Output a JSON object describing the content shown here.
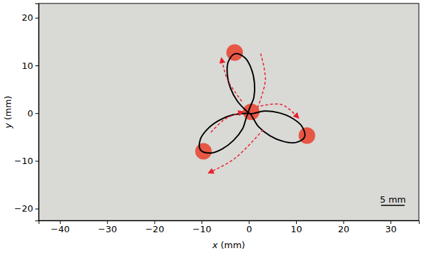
{
  "chart_data": {
    "type": "line",
    "xlabel": "x (mm)",
    "ylabel": "y (mm)",
    "xlim": [
      -44.5,
      36
    ],
    "ylim": [
      -22.5,
      23
    ],
    "xticks": [
      {
        "value": -40,
        "label": "−40"
      },
      {
        "value": -30,
        "label": "−30"
      },
      {
        "value": -20,
        "label": "−20"
      },
      {
        "value": -10,
        "label": "−10"
      },
      0,
      10,
      20,
      30
    ],
    "yticks": [
      {
        "value": -20,
        "label": "−20"
      },
      {
        "value": -10,
        "label": "−10"
      },
      0,
      10,
      20
    ],
    "grid": false,
    "scale_bar": {
      "length": 5,
      "label": "5 mm"
    },
    "series": [
      {
        "type": "line",
        "color": "#000000",
        "line_style": "solid",
        "marker": "none",
        "x": [
          0,
          -2.43,
          -3.88,
          -4.56,
          -4.34,
          -2.88,
          -0.83,
          0.51,
          1.18,
          1.08,
          0,
          3.47,
          6.54,
          9.31,
          11.3,
          11.79,
          9.89,
          7.27,
          4.51,
          2.06,
          0,
          -1.31,
          -3.23,
          -5.63,
          -8.11,
          -10.23,
          -10.27,
          -8.76,
          -6.36,
          -3.48,
          0
        ],
        "y": [
          0,
          2.52,
          5.26,
          8.18,
          10.8,
          12.47,
          11.61,
          9.35,
          6.43,
          3.33,
          0,
          0.48,
          0.05,
          -1.12,
          -2.84,
          -5.0,
          -6.16,
          -5.91,
          -4.74,
          -2.83,
          0,
          -3.24,
          -5.69,
          -7.5,
          -8.36,
          -7.71,
          -5.49,
          -3.34,
          -1.54,
          -0.37,
          0
        ]
      },
      {
        "type": "scatter",
        "color": "#e8402a",
        "marker": "circle",
        "x": [
          -3,
          12.3,
          -9.6,
          0.5
        ],
        "y": [
          12.7,
          -4.7,
          -8,
          0.3
        ]
      },
      {
        "type": "line",
        "color": "#e8202a",
        "line_style": "dashed",
        "marker": "arrow",
        "x": [
          -1.5,
          -4.5,
          -5.8
        ],
        "y": [
          2.5,
          7,
          11.5
        ]
      },
      {
        "type": "line",
        "color": "#e8202a",
        "line_style": "dashed",
        "marker": "none",
        "x": [
          2.5,
          3.5,
          1.8
        ],
        "y": [
          12.5,
          7,
          1
        ]
      },
      {
        "type": "line",
        "color": "#e8202a",
        "line_style": "dashed",
        "marker": "arrow",
        "x": [
          2.5,
          7,
          10.5
        ],
        "y": [
          1.5,
          1.8,
          -1
        ]
      },
      {
        "type": "line",
        "color": "#e8202a",
        "line_style": "dashed",
        "marker": "arrow",
        "x": [
          3,
          -3,
          -8.5
        ],
        "y": [
          -3.5,
          -9.5,
          -12.5
        ]
      },
      {
        "type": "line",
        "color": "#e8202a",
        "line_style": "dashed",
        "marker": "arrow",
        "x": [
          -8,
          -5,
          -1.2
        ],
        "y": [
          -4,
          -1.2,
          0.3
        ]
      }
    ]
  }
}
